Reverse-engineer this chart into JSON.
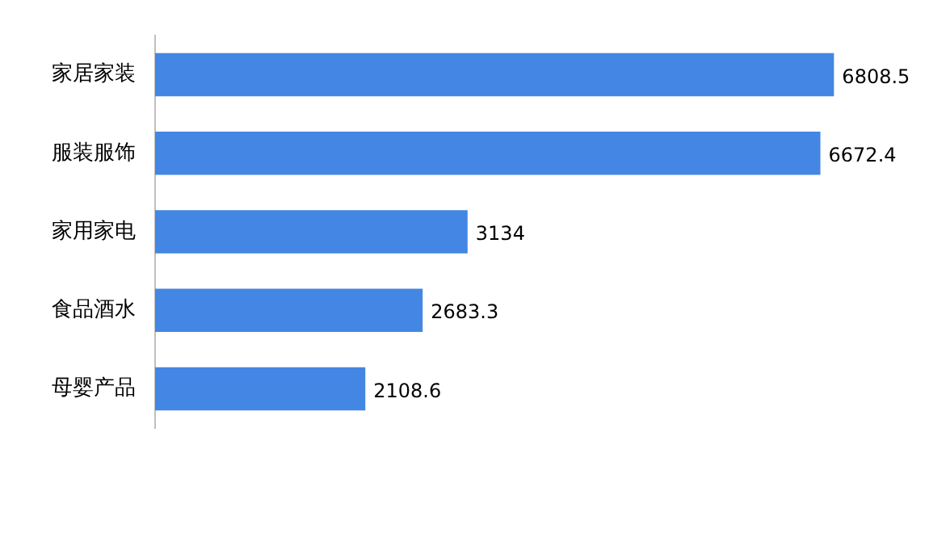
{
  "chart_data": {
    "type": "bar",
    "orientation": "horizontal",
    "categories": [
      "家居家装",
      "服装服饰",
      "家用家电",
      "食品酒水",
      "母婴产品"
    ],
    "values": [
      6808.5,
      6672.4,
      3134,
      2683.3,
      2108.6
    ],
    "color": "#4486e3",
    "data_labels": true,
    "legend": false
  }
}
